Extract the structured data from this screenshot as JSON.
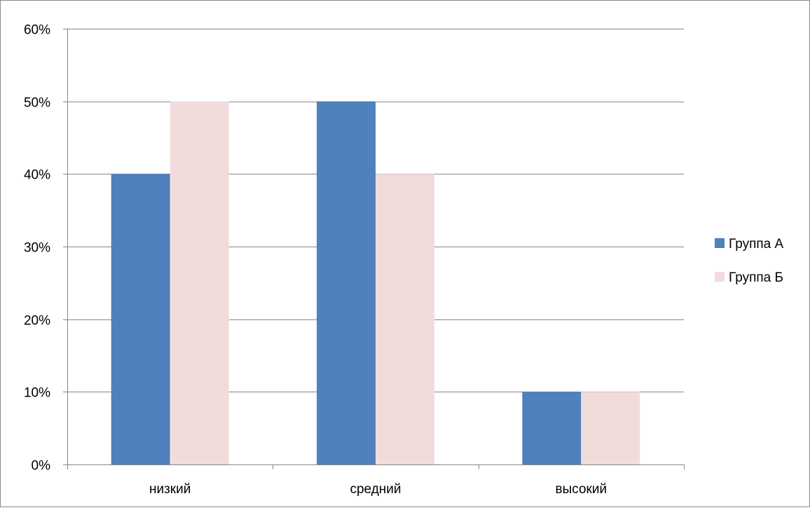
{
  "chart_data": {
    "type": "bar",
    "categories": [
      "низкий",
      "средний",
      "высокий"
    ],
    "series": [
      {
        "name": "Группа А",
        "values": [
          0.4,
          0.5,
          0.1
        ],
        "color": "#4f81bd"
      },
      {
        "name": "Группа Б",
        "values": [
          0.5,
          0.4,
          0.1
        ],
        "color": "#f2dcdb"
      }
    ],
    "ylim": [
      0,
      0.6
    ],
    "y_ticks": [
      0,
      0.1,
      0.2,
      0.3,
      0.4,
      0.5,
      0.6
    ],
    "y_tick_labels": [
      "0%",
      "10%",
      "20%",
      "30%",
      "40%",
      "50%",
      "60%"
    ],
    "grid": true,
    "legend_position": "right",
    "gridline_color": "#868686"
  }
}
